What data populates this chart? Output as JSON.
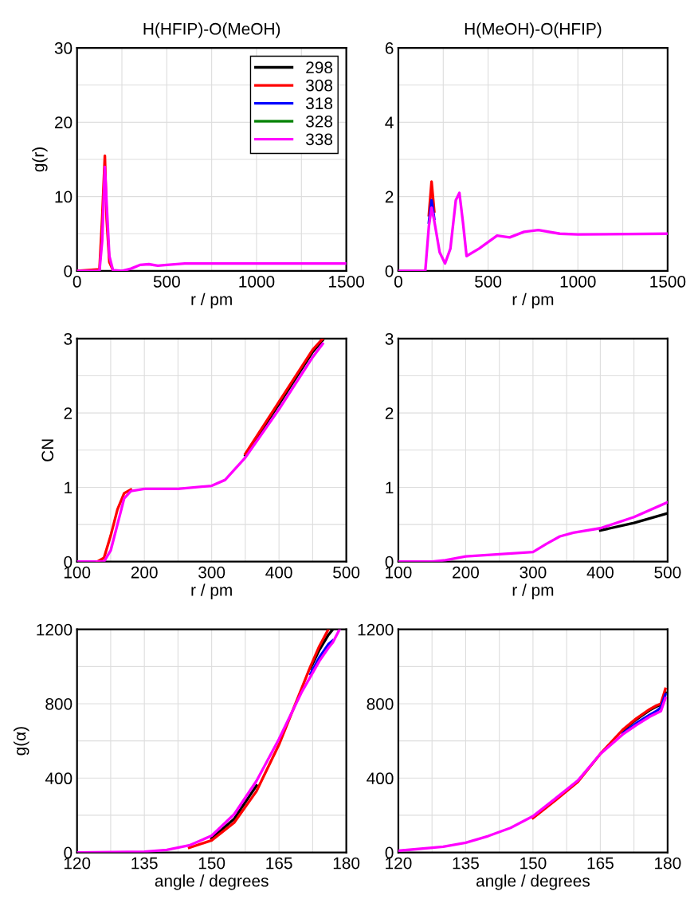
{
  "chart_data": [
    {
      "type": "line",
      "title": "H(HFIP)-O(MeOH)",
      "xlabel": "r / pm",
      "ylabel": "g(r)",
      "xlim": [
        0,
        1500
      ],
      "ylim": [
        0,
        30
      ],
      "grid": true,
      "legend": "top right",
      "xticks": [
        0,
        {
          "value": 250,
          "label": null
        },
        500,
        {
          "value": 750,
          "label": null
        },
        1000,
        {
          "value": 1250,
          "label": null
        },
        1500
      ],
      "yticks": [
        0,
        {
          "value": 5,
          "label": null
        },
        10,
        {
          "value": 15,
          "label": null
        },
        20,
        {
          "value": 25,
          "label": null
        },
        30
      ],
      "x": [
        0,
        125,
        140,
        155,
        165,
        180,
        200,
        250,
        300,
        350,
        400,
        450,
        500,
        600,
        700,
        1000,
        1500
      ],
      "series": [
        {
          "name": "298",
          "color": "#000000",
          "values": [
            null,
            null,
            null,
            null,
            null,
            null,
            null,
            null,
            null,
            null,
            null,
            null,
            null,
            null,
            null,
            null,
            null
          ]
        },
        {
          "name": "308",
          "color": "#ff0000",
          "values": [
            0,
            0.2,
            7,
            15.5,
            7,
            1.2,
            0.1,
            null,
            null,
            null,
            null,
            null,
            null,
            null,
            null,
            null,
            null
          ]
        },
        {
          "name": "318",
          "color": "#0000ff",
          "values": [
            null,
            null,
            null,
            null,
            null,
            null,
            null,
            null,
            null,
            null,
            null,
            null,
            null,
            null,
            null,
            null,
            null
          ]
        },
        {
          "name": "328",
          "color": "#008000",
          "values": [
            null,
            null,
            null,
            null,
            null,
            null,
            null,
            null,
            null,
            null,
            null,
            null,
            null,
            null,
            null,
            null,
            null
          ]
        },
        {
          "name": "338",
          "color": "#ff00ff",
          "values": [
            0,
            0,
            4,
            14,
            9,
            2,
            0.1,
            0,
            0.3,
            0.8,
            0.9,
            0.7,
            0.8,
            1,
            1,
            1,
            1
          ]
        }
      ]
    },
    {
      "type": "line",
      "title": "H(MeOH)-O(HFIP)",
      "xlabel": "r / pm",
      "xlim": [
        0,
        1500
      ],
      "ylim": [
        0,
        6
      ],
      "grid": true,
      "xticks": [
        0,
        {
          "value": 250,
          "label": null
        },
        500,
        {
          "value": 750,
          "label": null
        },
        1000,
        {
          "value": 1250,
          "label": null
        },
        1500
      ],
      "yticks": [
        0,
        {
          "value": 1,
          "label": null
        },
        2,
        {
          "value": 3,
          "label": null
        },
        4,
        {
          "value": 5,
          "label": null
        },
        6
      ],
      "x": [
        0,
        150,
        170,
        185,
        200,
        230,
        260,
        290,
        320,
        340,
        360,
        380,
        450,
        550,
        620,
        700,
        780,
        900,
        1000,
        1500
      ],
      "series": [
        {
          "color": "#000000",
          "values": [
            null,
            null,
            null,
            null,
            null,
            null,
            null,
            null,
            null,
            null,
            null,
            null,
            null,
            null,
            null,
            null,
            null,
            null,
            null,
            null
          ]
        },
        {
          "color": "#ff0000",
          "values": [
            null,
            null,
            1.5,
            2.4,
            1.6,
            null,
            null,
            null,
            null,
            null,
            null,
            null,
            null,
            null,
            null,
            null,
            null,
            null,
            null,
            null
          ]
        },
        {
          "color": "#0000ff",
          "values": [
            null,
            null,
            1.3,
            1.9,
            1.4,
            null,
            null,
            null,
            null,
            null,
            null,
            null,
            null,
            null,
            null,
            null,
            null,
            null,
            null,
            null
          ]
        },
        {
          "color": "#008000",
          "values": [
            null,
            null,
            null,
            null,
            null,
            null,
            null,
            null,
            null,
            null,
            null,
            null,
            null,
            null,
            null,
            null,
            null,
            null,
            null,
            null
          ]
        },
        {
          "color": "#ff00ff",
          "values": [
            0,
            0,
            1.2,
            1.7,
            1.35,
            0.5,
            0.2,
            0.6,
            1.9,
            2.1,
            1.3,
            0.4,
            0.6,
            0.95,
            0.9,
            1.05,
            1.1,
            1.0,
            0.98,
            1.0
          ]
        }
      ]
    },
    {
      "type": "line",
      "xlabel": "r / pm",
      "ylabel": "CN",
      "xlim": [
        100,
        500
      ],
      "ylim": [
        0,
        3
      ],
      "grid": true,
      "xticks": [
        100,
        {
          "value": 150,
          "label": null
        },
        200,
        {
          "value": 250,
          "label": null
        },
        300,
        {
          "value": 350,
          "label": null
        },
        400,
        {
          "value": 450,
          "label": null
        },
        500
      ],
      "yticks": [
        0,
        {
          "value": 0.5,
          "label": null
        },
        1,
        {
          "value": 1.5,
          "label": null
        },
        2,
        {
          "value": 2.5,
          "label": null
        },
        3
      ],
      "x": [
        100,
        130,
        140,
        150,
        160,
        170,
        180,
        200,
        250,
        300,
        320,
        350,
        400,
        450,
        465
      ],
      "series": [
        {
          "color": "#000000",
          "values": [
            null,
            null,
            null,
            null,
            null,
            null,
            null,
            null,
            null,
            null,
            null,
            1.43,
            2.12,
            2.82,
            2.98
          ]
        },
        {
          "color": "#ff0000",
          "values": [
            null,
            0,
            0.05,
            0.35,
            0.7,
            0.92,
            0.97,
            null,
            null,
            null,
            null,
            1.45,
            2.15,
            2.85,
            3.0
          ]
        },
        {
          "color": "#0000ff",
          "values": [
            null,
            null,
            null,
            null,
            null,
            null,
            null,
            null,
            null,
            null,
            null,
            null,
            null,
            null,
            null
          ]
        },
        {
          "color": "#008000",
          "values": [
            null,
            null,
            null,
            null,
            null,
            null,
            null,
            null,
            null,
            null,
            null,
            null,
            null,
            null,
            null
          ]
        },
        {
          "color": "#ff00ff",
          "values": [
            0,
            0,
            0,
            0.15,
            0.5,
            0.85,
            0.95,
            0.98,
            0.98,
            1.02,
            1.1,
            1.4,
            2.05,
            2.75,
            2.93
          ]
        }
      ]
    },
    {
      "type": "line",
      "xlabel": "r / pm",
      "xlim": [
        100,
        500
      ],
      "ylim": [
        0,
        3
      ],
      "grid": true,
      "xticks": [
        100,
        {
          "value": 150,
          "label": null
        },
        200,
        {
          "value": 250,
          "label": null
        },
        300,
        {
          "value": 350,
          "label": null
        },
        400,
        {
          "value": 450,
          "label": null
        },
        500
      ],
      "yticks": [
        0,
        {
          "value": 0.5,
          "label": null
        },
        1,
        {
          "value": 1.5,
          "label": null
        },
        2,
        {
          "value": 2.5,
          "label": null
        },
        3
      ],
      "x": [
        100,
        150,
        170,
        200,
        250,
        300,
        320,
        340,
        360,
        400,
        450,
        500
      ],
      "series": [
        {
          "color": "#000000",
          "values": [
            null,
            null,
            null,
            null,
            null,
            null,
            null,
            null,
            null,
            0.42,
            0.52,
            0.65
          ]
        },
        {
          "color": "#ff0000",
          "values": [
            null,
            null,
            null,
            null,
            null,
            null,
            null,
            null,
            null,
            null,
            null,
            null
          ]
        },
        {
          "color": "#0000ff",
          "values": [
            null,
            null,
            null,
            null,
            null,
            null,
            null,
            null,
            null,
            null,
            null,
            null
          ]
        },
        {
          "color": "#008000",
          "values": [
            null,
            null,
            null,
            null,
            null,
            null,
            null,
            null,
            null,
            null,
            null,
            null
          ]
        },
        {
          "color": "#ff00ff",
          "values": [
            0,
            0,
            0.02,
            0.07,
            0.1,
            0.13,
            0.24,
            0.34,
            0.39,
            0.45,
            0.6,
            0.8
          ]
        }
      ]
    },
    {
      "type": "line",
      "xlabel": "angle / degrees",
      "ylabel": "g(α)",
      "xlim": [
        120,
        180
      ],
      "ylim": [
        0,
        1200
      ],
      "grid": true,
      "xticks": [
        120,
        {
          "value": 127.5,
          "label": null
        },
        135,
        {
          "value": 142.5,
          "label": null
        },
        150,
        {
          "value": 157.5,
          "label": null
        },
        165,
        {
          "value": 172.5,
          "label": null
        },
        180
      ],
      "yticks": [
        0,
        {
          "value": 200,
          "label": null
        },
        400,
        {
          "value": 600,
          "label": null
        },
        800,
        {
          "value": 1000,
          "label": null
        },
        1200
      ],
      "x": [
        120,
        135,
        140,
        145,
        150,
        155,
        160,
        165,
        170,
        172,
        174,
        176,
        177,
        178.5
      ],
      "series": [
        {
          "color": "#000000",
          "values": [
            null,
            null,
            null,
            null,
            75,
            180,
            360,
            null,
            null,
            990,
            1090,
            1170,
            1200,
            null
          ]
        },
        {
          "color": "#ff0000",
          "values": [
            null,
            null,
            null,
            25,
            65,
            160,
            330,
            580,
            880,
            1000,
            1110,
            1200,
            null,
            null
          ]
        },
        {
          "color": "#0000ff",
          "values": [
            null,
            null,
            null,
            null,
            null,
            null,
            null,
            null,
            null,
            960,
            1050,
            1120,
            1140,
            null
          ]
        },
        {
          "color": "#008000",
          "values": [
            null,
            null,
            null,
            null,
            null,
            null,
            null,
            null,
            null,
            null,
            null,
            null,
            null,
            null
          ]
        },
        {
          "color": "#ff00ff",
          "values": [
            0,
            4,
            14,
            38,
            90,
            205,
            385,
            610,
            860,
            945,
            1030,
            1100,
            1130,
            1200
          ]
        }
      ]
    },
    {
      "type": "line",
      "xlabel": "angle / degrees",
      "xlim": [
        120,
        180
      ],
      "ylim": [
        0,
        1200
      ],
      "grid": true,
      "xticks": [
        120,
        {
          "value": 127.5,
          "label": null
        },
        135,
        {
          "value": 142.5,
          "label": null
        },
        150,
        {
          "value": 157.5,
          "label": null
        },
        165,
        {
          "value": 172.5,
          "label": null
        },
        180
      ],
      "yticks": [
        0,
        {
          "value": 200,
          "label": null
        },
        400,
        {
          "value": 600,
          "label": null
        },
        800,
        {
          "value": 1000,
          "label": null
        },
        1200
      ],
      "x": [
        120,
        130,
        135,
        140,
        145,
        150,
        155,
        160,
        165,
        170,
        173,
        176,
        177.5,
        178.5,
        179.5
      ],
      "series": [
        {
          "color": "#000000",
          "values": [
            null,
            null,
            null,
            null,
            null,
            null,
            null,
            null,
            null,
            655,
            715,
            765,
            785,
            795,
            860
          ]
        },
        {
          "color": "#ff0000",
          "values": [
            null,
            null,
            null,
            null,
            null,
            185,
            280,
            380,
            530,
            660,
            720,
            770,
            790,
            800,
            880
          ]
        },
        {
          "color": "#0000ff",
          "values": [
            null,
            null,
            null,
            null,
            null,
            null,
            null,
            null,
            null,
            640,
            695,
            740,
            760,
            780,
            850
          ]
        },
        {
          "color": "#008000",
          "values": [
            null,
            null,
            null,
            null,
            null,
            null,
            null,
            null,
            null,
            null,
            null,
            null,
            null,
            null,
            null
          ]
        },
        {
          "color": "#ff00ff",
          "values": [
            9,
            31,
            52,
            88,
            132,
            195,
            290,
            387,
            530,
            635,
            685,
            730,
            748,
            760,
            830
          ]
        }
      ]
    }
  ]
}
